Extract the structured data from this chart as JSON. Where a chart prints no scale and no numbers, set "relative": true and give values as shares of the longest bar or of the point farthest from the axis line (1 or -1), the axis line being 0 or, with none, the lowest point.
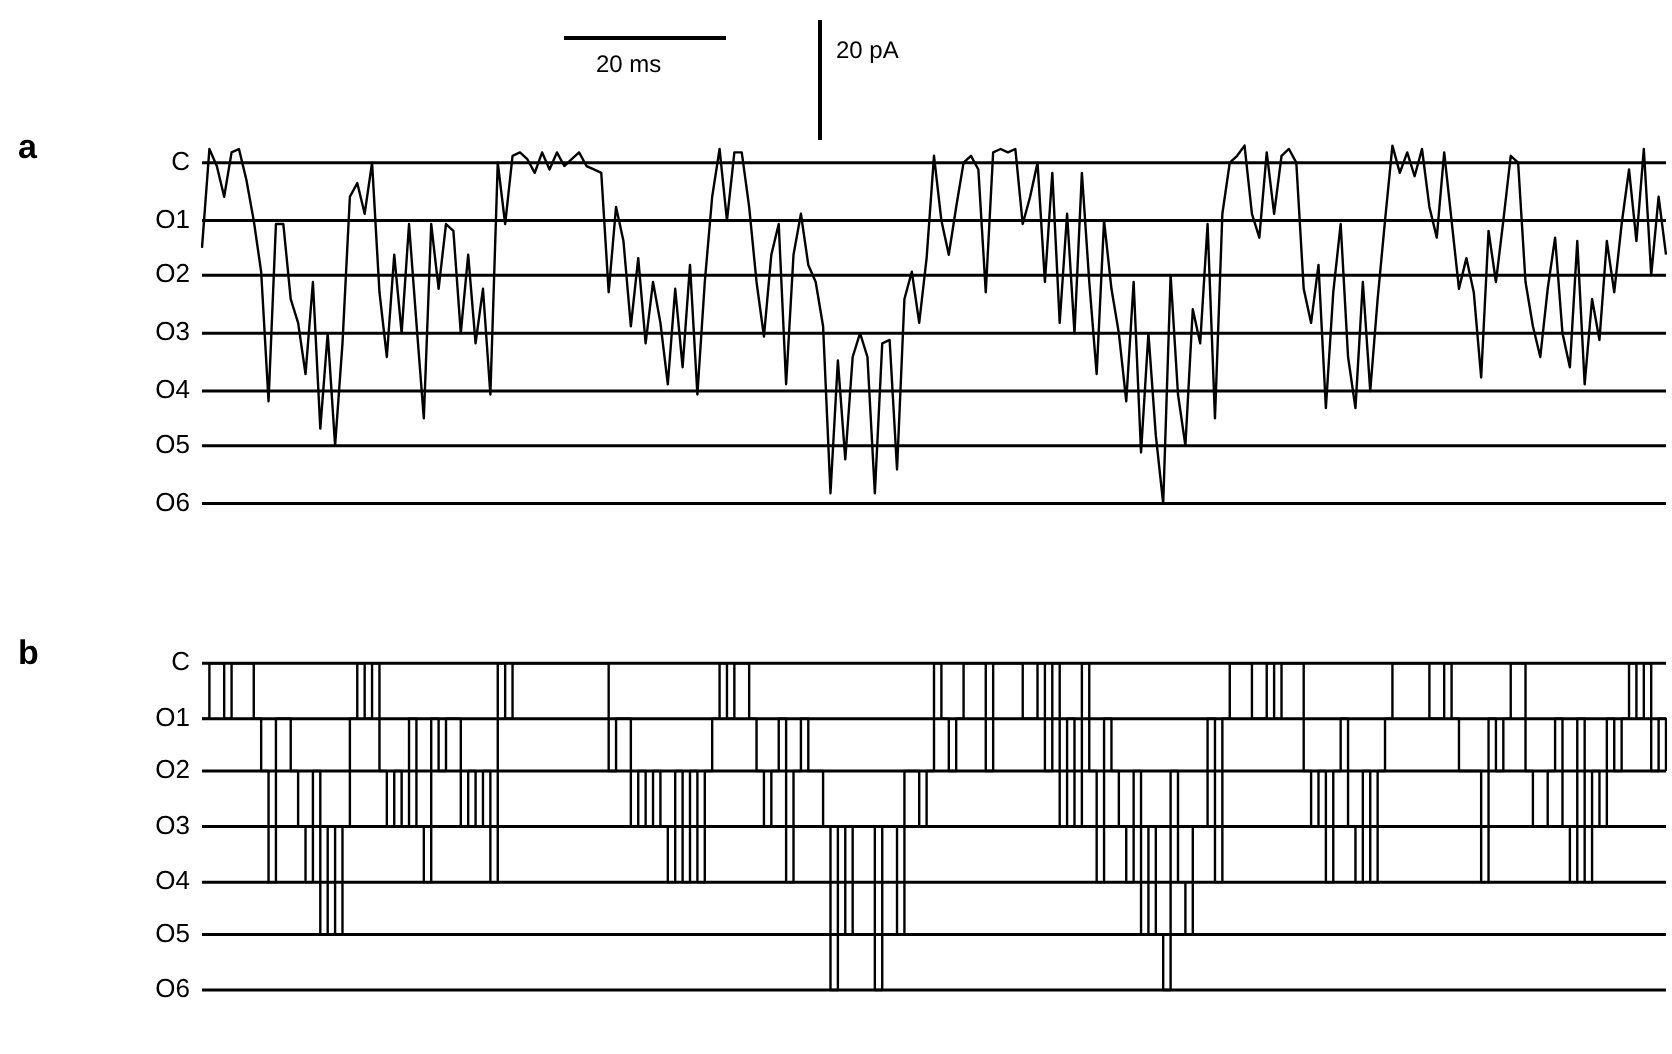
{
  "chart_data": [
    {
      "type": "line",
      "title": "a",
      "annotations": [
        "20 ms",
        "20 pA"
      ],
      "marker": "none",
      "legend": false,
      "relative": true,
      "ref_lines": [
        {
          "axis": "y",
          "value": 0,
          "label": "C",
          "color": "#000000"
        },
        {
          "axis": "y",
          "value": -0.17,
          "label": "O1",
          "color": "#000000"
        },
        {
          "axis": "y",
          "value": -0.33,
          "label": "O2",
          "color": "#000000"
        },
        {
          "axis": "y",
          "value": -0.5,
          "label": "O3",
          "color": "#000000"
        },
        {
          "axis": "y",
          "value": -0.67,
          "label": "O4",
          "color": "#000000"
        },
        {
          "axis": "y",
          "value": -0.83,
          "label": "O5",
          "color": "#000000"
        },
        {
          "axis": "y",
          "value": -1,
          "label": "O6",
          "color": "#000000"
        }
      ],
      "categories": [
        null,
        null,
        null,
        null,
        null,
        null,
        null,
        null,
        null,
        null,
        null,
        null,
        null,
        null,
        null,
        null,
        null,
        null,
        null,
        null,
        null,
        null,
        null,
        null,
        null,
        null,
        null,
        null,
        null,
        null,
        null,
        null,
        null,
        null,
        null,
        null,
        null,
        null,
        null,
        null,
        null,
        null,
        null,
        null,
        null,
        null,
        null,
        null,
        null,
        null,
        null,
        null,
        null,
        null,
        null,
        null,
        null,
        null,
        null,
        null,
        null,
        null,
        null,
        null,
        null,
        null,
        null,
        null,
        null,
        null,
        null,
        null,
        null,
        null,
        null,
        null,
        null,
        null,
        null,
        null,
        null,
        null,
        null,
        null,
        null,
        null,
        null,
        null,
        null,
        null,
        null,
        null,
        null,
        null,
        null,
        null,
        null,
        null,
        null,
        null,
        null,
        null,
        null,
        null,
        null,
        null,
        null,
        null,
        null,
        null,
        null,
        null,
        null,
        null,
        null,
        null,
        null,
        null,
        null,
        null,
        null,
        null,
        null,
        null,
        null,
        null,
        null,
        null,
        null,
        null,
        null,
        null,
        null,
        null,
        null,
        null,
        null,
        null,
        null,
        null,
        null,
        null,
        null,
        null,
        null,
        null,
        null,
        null,
        null,
        null,
        null,
        null,
        null,
        null,
        null,
        null,
        null,
        null,
        null,
        null,
        null,
        null,
        null,
        null,
        null,
        null,
        null,
        null,
        null,
        null,
        null,
        null,
        null,
        null,
        null,
        null,
        null,
        null,
        null,
        null,
        null,
        null,
        null,
        null,
        null,
        null,
        null,
        null,
        null,
        null,
        null,
        null,
        null,
        null,
        null,
        null,
        null,
        null,
        null
      ],
      "series": [
        {
          "color": "#000000",
          "values": [
            -0.25,
            0.04,
            -0.01,
            -0.1,
            0.03,
            0.04,
            -0.05,
            -0.17,
            -0.32,
            -0.7,
            -0.18,
            -0.18,
            -0.4,
            -0.47,
            -0.62,
            -0.35,
            -0.78,
            -0.5,
            -0.83,
            -0.53,
            -0.1,
            -0.06,
            -0.15,
            0,
            -0.38,
            -0.57,
            -0.27,
            -0.5,
            -0.18,
            -0.47,
            -0.75,
            -0.18,
            -0.37,
            -0.18,
            -0.2,
            -0.5,
            -0.27,
            -0.53,
            -0.37,
            -0.68,
            0,
            -0.18,
            0.02,
            0.03,
            0.01,
            -0.03,
            0.03,
            -0.02,
            0.03,
            -0.01,
            0.01,
            0.03,
            -0.01,
            -0.02,
            -0.03,
            -0.38,
            -0.13,
            -0.23,
            -0.48,
            -0.28,
            -0.53,
            -0.35,
            -0.47,
            -0.65,
            -0.37,
            -0.6,
            -0.3,
            -0.68,
            -0.35,
            -0.1,
            0.04,
            -0.17,
            0.03,
            0.03,
            -0.13,
            -0.35,
            -0.51,
            -0.27,
            -0.18,
            -0.65,
            -0.27,
            -0.15,
            -0.3,
            -0.35,
            -0.48,
            -0.97,
            -0.58,
            -0.87,
            -0.57,
            -0.5,
            -0.57,
            -0.97,
            -0.53,
            -0.52,
            -0.9,
            -0.4,
            -0.32,
            -0.47,
            -0.28,
            0.02,
            -0.17,
            -0.27,
            -0.13,
            0,
            0.02,
            -0.02,
            -0.38,
            0.03,
            0.04,
            0.03,
            0.04,
            -0.18,
            -0.1,
            0,
            -0.35,
            -0.03,
            -0.47,
            -0.15,
            -0.5,
            -0.03,
            -0.35,
            -0.62,
            -0.17,
            -0.37,
            -0.5,
            -0.7,
            -0.35,
            -0.85,
            -0.5,
            -0.8,
            -1,
            -0.33,
            -0.68,
            -0.83,
            -0.43,
            -0.53,
            -0.18,
            -0.75,
            -0.15,
            0,
            0.02,
            0.05,
            -0.15,
            -0.22,
            0.03,
            -0.15,
            0.02,
            0.04,
            0,
            -0.37,
            -0.47,
            -0.3,
            -0.72,
            -0.38,
            -0.18,
            -0.57,
            -0.72,
            -0.35,
            -0.67,
            -0.4,
            -0.17,
            0.05,
            -0.03,
            0.03,
            -0.04,
            0.04,
            -0.13,
            -0.22,
            0.03,
            -0.17,
            -0.37,
            -0.28,
            -0.38,
            -0.63,
            -0.2,
            -0.35,
            -0.17,
            0.02,
            0,
            -0.35,
            -0.48,
            -0.57,
            -0.37,
            -0.22,
            -0.5,
            -0.6,
            -0.23,
            -0.65,
            -0.4,
            -0.52,
            -0.23,
            -0.38,
            -0.18,
            -0.02,
            -0.23,
            0.04,
            -0.33,
            -0.1,
            -0.27
          ]
        }
      ]
    },
    {
      "type": "step",
      "title": "b",
      "marker": "none",
      "legend": false,
      "relative": true,
      "ref_lines": [
        {
          "axis": "y",
          "value": 0,
          "label": "C",
          "color": "#000000"
        },
        {
          "axis": "y",
          "value": -0.17,
          "label": "O1",
          "color": "#000000"
        },
        {
          "axis": "y",
          "value": -0.33,
          "label": "O2",
          "color": "#000000"
        },
        {
          "axis": "y",
          "value": -0.5,
          "label": "O3",
          "color": "#000000"
        },
        {
          "axis": "y",
          "value": -0.67,
          "label": "O4",
          "color": "#000000"
        },
        {
          "axis": "y",
          "value": -0.83,
          "label": "O5",
          "color": "#000000"
        },
        {
          "axis": "y",
          "value": -1,
          "label": "O6",
          "color": "#000000"
        }
      ],
      "categories": [
        null,
        null,
        null,
        null,
        null,
        null,
        null,
        null,
        null,
        null,
        null,
        null,
        null,
        null,
        null,
        null,
        null,
        null,
        null,
        null,
        null,
        null,
        null,
        null,
        null,
        null,
        null,
        null,
        null,
        null,
        null,
        null,
        null,
        null,
        null,
        null,
        null,
        null,
        null,
        null,
        null,
        null,
        null,
        null,
        null,
        null,
        null,
        null,
        null,
        null,
        null,
        null,
        null,
        null,
        null,
        null,
        null,
        null,
        null,
        null,
        null,
        null,
        null,
        null,
        null,
        null,
        null,
        null,
        null,
        null,
        null,
        null,
        null,
        null,
        null,
        null,
        null,
        null,
        null,
        null,
        null,
        null,
        null,
        null,
        null,
        null,
        null,
        null,
        null,
        null,
        null,
        null,
        null,
        null,
        null,
        null,
        null,
        null,
        null,
        null,
        null,
        null,
        null,
        null,
        null,
        null,
        null,
        null,
        null,
        null,
        null,
        null,
        null,
        null,
        null,
        null,
        null,
        null,
        null,
        null,
        null,
        null,
        null,
        null,
        null,
        null,
        null,
        null,
        null,
        null,
        null,
        null,
        null,
        null,
        null,
        null,
        null,
        null,
        null,
        null,
        null,
        null,
        null,
        null,
        null,
        null,
        null,
        null,
        null,
        null,
        null,
        null,
        null,
        null,
        null,
        null,
        null,
        null,
        null,
        null,
        null,
        null,
        null,
        null,
        null,
        null,
        null,
        null,
        null,
        null,
        null,
        null,
        null,
        null,
        null,
        null,
        null,
        null,
        null,
        null,
        null,
        null,
        null,
        null,
        null,
        null,
        null,
        null,
        null,
        null,
        null,
        null,
        null,
        null,
        null,
        null,
        null,
        null,
        null
      ],
      "series": [
        {
          "color": "#000000",
          "values": [
            -0.17,
            0,
            0,
            -0.17,
            0,
            0,
            0,
            -0.17,
            -0.33,
            -0.67,
            -0.17,
            -0.17,
            -0.33,
            -0.5,
            -0.67,
            -0.33,
            -0.83,
            -0.5,
            -0.83,
            -0.5,
            -0.17,
            0,
            -0.17,
            0,
            -0.33,
            -0.5,
            -0.33,
            -0.5,
            -0.17,
            -0.5,
            -0.67,
            -0.17,
            -0.33,
            -0.17,
            -0.17,
            -0.5,
            -0.33,
            -0.5,
            -0.33,
            -0.67,
            0,
            -0.17,
            0,
            0,
            0,
            0,
            0,
            0,
            0,
            0,
            0,
            0,
            0,
            0,
            0,
            -0.33,
            -0.17,
            -0.17,
            -0.5,
            -0.33,
            -0.5,
            -0.33,
            -0.5,
            -0.67,
            -0.33,
            -0.67,
            -0.33,
            -0.67,
            -0.33,
            -0.17,
            0,
            -0.17,
            0,
            0,
            -0.17,
            -0.33,
            -0.5,
            -0.33,
            -0.17,
            -0.67,
            -0.33,
            -0.17,
            -0.33,
            -0.33,
            -0.5,
            -1,
            -0.5,
            -0.83,
            -0.5,
            -0.5,
            -0.5,
            -1,
            -0.5,
            -0.5,
            -0.83,
            -0.33,
            -0.33,
            -0.5,
            -0.33,
            0,
            -0.17,
            -0.33,
            -0.17,
            0,
            0,
            0,
            -0.33,
            0,
            0,
            0,
            0,
            -0.17,
            -0.17,
            0,
            -0.33,
            0,
            -0.5,
            -0.17,
            -0.5,
            0,
            -0.33,
            -0.67,
            -0.17,
            -0.33,
            -0.5,
            -0.67,
            -0.33,
            -0.83,
            -0.5,
            -0.83,
            -1,
            -0.33,
            -0.67,
            -0.83,
            -0.5,
            -0.5,
            -0.17,
            -0.67,
            -0.17,
            0,
            0,
            0,
            -0.17,
            -0.17,
            0,
            -0.17,
            0,
            0,
            0,
            -0.33,
            -0.5,
            -0.33,
            -0.67,
            -0.33,
            -0.17,
            -0.5,
            -0.67,
            -0.33,
            -0.67,
            -0.33,
            -0.17,
            0,
            0,
            0,
            0,
            0,
            -0.17,
            -0.17,
            0,
            -0.17,
            -0.33,
            -0.33,
            -0.33,
            -0.67,
            -0.17,
            -0.33,
            -0.17,
            0,
            0,
            -0.33,
            -0.5,
            -0.5,
            -0.33,
            -0.17,
            -0.5,
            -0.67,
            -0.17,
            -0.67,
            -0.33,
            -0.5,
            -0.17,
            -0.33,
            -0.17,
            0,
            -0.17,
            0,
            -0.33,
            -0.17,
            -0.33
          ]
        }
      ]
    }
  ]
}
